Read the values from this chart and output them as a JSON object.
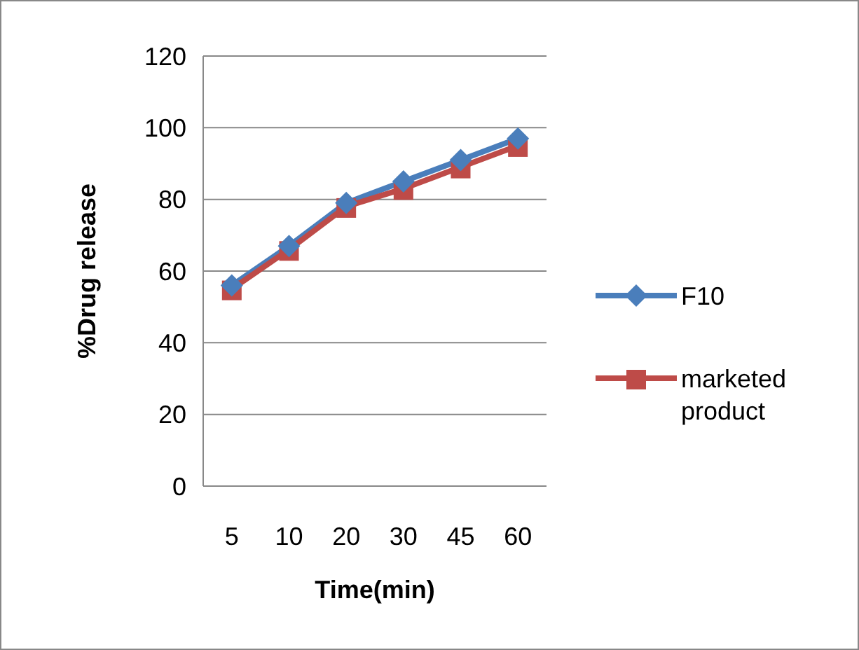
{
  "chart_data": {
    "type": "line",
    "xlabel": "Time(min)",
    "ylabel": "%Drug release",
    "categories": [
      "5",
      "10",
      "20",
      "30",
      "45",
      "60"
    ],
    "series": [
      {
        "name": "F10",
        "color": "#4a7ebb",
        "values": [
          56,
          67,
          79,
          85,
          91,
          97
        ],
        "marker": "diamond"
      },
      {
        "name": "marketed product",
        "color": "#be4b48",
        "values": [
          55,
          66,
          78,
          83,
          89,
          95
        ],
        "marker": "square"
      }
    ],
    "ylim": [
      0,
      120
    ],
    "yticks": [
      0,
      20,
      40,
      60,
      80,
      100,
      120
    ],
    "grid": "y",
    "legend": "right",
    "line_style": "solid"
  }
}
